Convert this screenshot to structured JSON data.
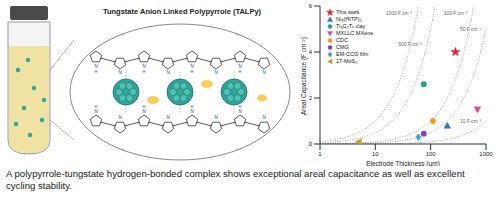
{
  "chart_data": {
    "type": "scatter",
    "x_label": "Electrode Thickness (μm)",
    "y_label": "Areal Capacitance (F cm⁻²)",
    "log": "x",
    "xlim": [
      1,
      1000
    ],
    "xticks": [
      1,
      10,
      100,
      1000
    ],
    "ylim": [
      0,
      6
    ],
    "yticks": [
      0,
      2,
      4,
      6
    ],
    "legend": "upper left",
    "series": [
      {
        "name": "This work",
        "color": "#e8262b",
        "marker": "star",
        "x": [
          280
        ],
        "values": [
          4.0
        ]
      },
      {
        "name": "Ni₃(HITP)₂",
        "color": "#2f6fd6",
        "marker": "triangle",
        "x": [
          200
        ],
        "values": [
          0.8
        ]
      },
      {
        "name": "Ti₃C₂Tₓ clay",
        "color": "#1fa58c",
        "marker": "circle",
        "x": [
          75
        ],
        "values": [
          2.6
        ]
      },
      {
        "name": "MXLLC MXene",
        "color": "#e0449c",
        "marker": "triangle_down",
        "x": [
          700
        ],
        "values": [
          1.5
        ]
      },
      {
        "name": "CDC",
        "color": "#f39a1e",
        "marker": "circle",
        "x": [
          110
        ],
        "values": [
          1.0
        ]
      },
      {
        "name": "CMG",
        "color": "#8a3fc4",
        "marker": "circle",
        "x": [
          75
        ],
        "values": [
          0.45
        ]
      },
      {
        "name": "EM-CCG film",
        "color": "#3aa0e0",
        "marker": "diamond",
        "x": [
          60
        ],
        "values": [
          0.3
        ]
      },
      {
        "name": "1T-MoS₂",
        "color": "#c8a21a",
        "marker": "triangle_left",
        "x": [
          5
        ],
        "values": [
          0.1
        ]
      }
    ],
    "guide_lines": [
      {
        "value": 1000,
        "label": "1000 F cm⁻³"
      },
      {
        "value": 500,
        "label": "500 F cm⁻³"
      },
      {
        "value": 100,
        "label": "100 F cm⁻³"
      },
      {
        "value": 50,
        "label": "50 F cm⁻³"
      },
      {
        "value": 10,
        "label": "10 F cm⁻³"
      }
    ]
  },
  "illustration": {
    "title": "Tungstate Anion Linked Polypyrrole (TALPy)",
    "atom_labels": [
      "N",
      "H"
    ]
  },
  "caption": "A polypyrrole-tungstate hydrogen-bonded complex shows exceptional areal capacitance as well as excellent cycling stability."
}
